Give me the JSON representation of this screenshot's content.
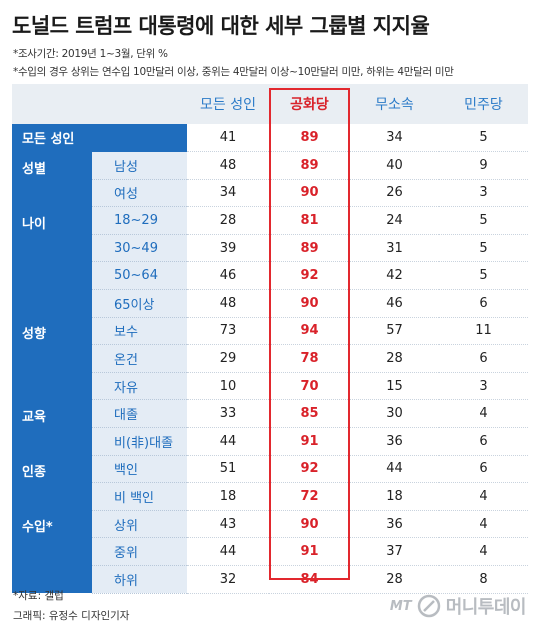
{
  "title": "도널드 트럼프 대통령에 대한 세부 그룹별 지지율",
  "notes": [
    "*조사기간: 2019년 1~3월, 단위 %",
    "*수입의 경우 상위는 연수입 10만달러 이상, 중위는 4만달러 이상~10만달러 미만, 하위는 4만달러 미만"
  ],
  "columns": [
    "모든 성인",
    "공화당",
    "무소속",
    "민주당"
  ],
  "colors": {
    "group_bg": "#1f6dbd",
    "sub_bg": "#e4ecf5",
    "header_text": "#2b7bc8",
    "republican": "#d9222a"
  },
  "all_row": {
    "label": "모든 성인",
    "values": [
      "41",
      "89",
      "34",
      "5"
    ]
  },
  "groups": [
    {
      "label": "성별",
      "rows": [
        {
          "label": "남성",
          "values": [
            "48",
            "89",
            "40",
            "9"
          ]
        },
        {
          "label": "여성",
          "values": [
            "34",
            "90",
            "26",
            "3"
          ]
        }
      ]
    },
    {
      "label": "나이",
      "rows": [
        {
          "label": "18~29",
          "values": [
            "28",
            "81",
            "24",
            "5"
          ]
        },
        {
          "label": "30~49",
          "values": [
            "39",
            "89",
            "31",
            "5"
          ]
        },
        {
          "label": "50~64",
          "values": [
            "46",
            "92",
            "42",
            "5"
          ]
        },
        {
          "label": "65이상",
          "values": [
            "48",
            "90",
            "46",
            "6"
          ]
        }
      ]
    },
    {
      "label": "성향",
      "rows": [
        {
          "label": "보수",
          "values": [
            "73",
            "94",
            "57",
            "11"
          ]
        },
        {
          "label": "온건",
          "values": [
            "29",
            "78",
            "28",
            "6"
          ]
        },
        {
          "label": "자유",
          "values": [
            "10",
            "70",
            "15",
            "3"
          ]
        }
      ]
    },
    {
      "label": "교육",
      "rows": [
        {
          "label": "대졸",
          "values": [
            "33",
            "85",
            "30",
            "4"
          ]
        },
        {
          "label": "비(非)대졸",
          "values": [
            "44",
            "91",
            "36",
            "6"
          ]
        }
      ]
    },
    {
      "label": "인종",
      "rows": [
        {
          "label": "백인",
          "values": [
            "51",
            "92",
            "44",
            "6"
          ]
        },
        {
          "label": "비 백인",
          "values": [
            "18",
            "72",
            "18",
            "4"
          ]
        }
      ]
    },
    {
      "label": "수입*",
      "rows": [
        {
          "label": "상위",
          "values": [
            "43",
            "90",
            "36",
            "4"
          ]
        },
        {
          "label": "중위",
          "values": [
            "44",
            "91",
            "37",
            "4"
          ]
        },
        {
          "label": "하위",
          "values": [
            "32",
            "84",
            "28",
            "8"
          ]
        }
      ]
    }
  ],
  "source": "*자료: 갤럽",
  "credit": "그래픽: 유정수 디자인기자",
  "logo": {
    "mark": "MT",
    "name": "머니투데이"
  }
}
